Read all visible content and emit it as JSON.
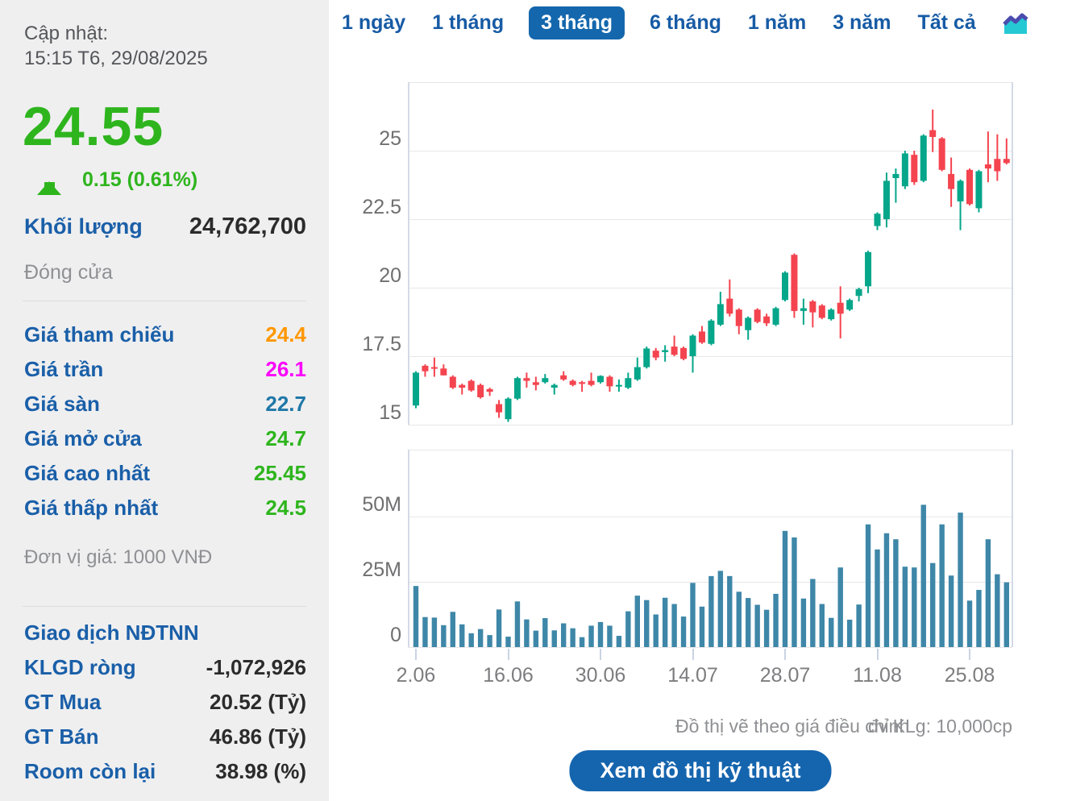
{
  "sidebar": {
    "updated_label": "Cập nhật:",
    "updated_time": "15:15 T6, 29/08/2025",
    "price": "24.55",
    "change": "0.15 (0.61%)",
    "volume_label": "Khối lượng",
    "volume_value": "24,762,700",
    "session_status": "Đóng cửa",
    "price_rows": [
      {
        "label": "Giá tham chiếu",
        "value": "24.4",
        "color": "#ff9800"
      },
      {
        "label": "Giá trần",
        "value": "26.1",
        "color": "#fb00fb"
      },
      {
        "label": "Giá sàn",
        "value": "22.7",
        "color": "#1f78a8"
      },
      {
        "label": "Giá mở cửa",
        "value": "24.7",
        "color": "#2eb51d"
      },
      {
        "label": "Giá cao nhất",
        "value": "25.45",
        "color": "#2eb51d"
      },
      {
        "label": "Giá thấp nhất",
        "value": "24.5",
        "color": "#2eb51d"
      }
    ],
    "unit_note": "Đơn vị giá: 1000 VNĐ",
    "foreign": {
      "title": "Giao dịch NĐTNN",
      "rows": [
        {
          "label": "KLGD ròng",
          "value": "-1,072,926"
        },
        {
          "label": "GT Mua",
          "value": "20.52 (Tỷ)"
        },
        {
          "label": "GT Bán",
          "value": "46.86 (Tỷ)"
        },
        {
          "label": "Room còn lại",
          "value": "38.98 (%)"
        }
      ]
    },
    "colors": {
      "price_up": "#2eb51d",
      "label_blue": "#1a5fa8"
    }
  },
  "tabs": {
    "items": [
      "1 ngày",
      "1 tháng",
      "3 tháng",
      "6 tháng",
      "1 năm",
      "3 năm",
      "Tất cả"
    ],
    "active": "3 tháng",
    "icon": "area-chart-icon"
  },
  "footer": {
    "note_left": "Đồ thị vẽ theo giá điều chỉnh",
    "note_right": "đv KLg: 10,000cp",
    "button_label": "Xem đồ thị kỹ thuật"
  },
  "chart_data": {
    "type": "candlestick+volume",
    "title": "",
    "price_axis": {
      "tick_labels": [
        "25",
        "22.5",
        "20",
        "17.5",
        "15"
      ],
      "tick_values": [
        25,
        22.5,
        20,
        17.5,
        15
      ],
      "range_shown": [
        14.9,
        27.5
      ]
    },
    "volume_axis": {
      "tick_labels": [
        "50M",
        "25M",
        "0"
      ],
      "tick_values_m": [
        50,
        25,
        0
      ]
    },
    "x_axis": {
      "tick_labels": [
        "2.06",
        "16.06",
        "30.06",
        "14.07",
        "28.07",
        "11.08",
        "25.08"
      ],
      "tick_indices": [
        0,
        10,
        20,
        30,
        40,
        50,
        60
      ]
    },
    "legend": null,
    "grid": true,
    "up_color": "#06a68a",
    "down_color": "#f4444f",
    "volume_color": "#3e87a8",
    "candles_ohlc": [
      [
        15.7,
        16.95,
        15.6,
        16.9
      ],
      [
        17.15,
        17.2,
        16.75,
        16.95
      ],
      [
        17.1,
        17.45,
        16.75,
        17.05
      ],
      [
        17.05,
        17.2,
        16.8,
        16.8
      ],
      [
        16.75,
        16.8,
        16.3,
        16.35
      ],
      [
        16.45,
        16.5,
        16.1,
        16.35
      ],
      [
        16.6,
        16.65,
        16.2,
        16.25
      ],
      [
        16.45,
        16.5,
        15.95,
        16.0
      ],
      [
        16.3,
        16.35,
        16.05,
        16.2
      ],
      [
        15.75,
        15.9,
        15.25,
        15.45
      ],
      [
        15.2,
        16.0,
        15.1,
        15.95
      ],
      [
        15.95,
        16.75,
        15.9,
        16.7
      ],
      [
        16.7,
        16.9,
        16.35,
        16.6
      ],
      [
        16.55,
        16.75,
        16.25,
        16.45
      ],
      [
        16.55,
        16.85,
        16.5,
        16.7
      ],
      [
        16.35,
        16.5,
        16.1,
        16.45
      ],
      [
        16.8,
        16.95,
        16.6,
        16.65
      ],
      [
        16.6,
        16.65,
        16.4,
        16.45
      ],
      [
        16.55,
        16.6,
        16.2,
        16.5
      ],
      [
        16.6,
        16.9,
        16.4,
        16.45
      ],
      [
        16.55,
        16.8,
        16.5,
        16.78
      ],
      [
        16.75,
        16.8,
        16.2,
        16.4
      ],
      [
        16.4,
        16.65,
        16.2,
        16.45
      ],
      [
        16.35,
        16.9,
        16.3,
        16.7
      ],
      [
        16.65,
        17.45,
        16.6,
        17.1
      ],
      [
        17.1,
        17.85,
        17.05,
        17.78
      ],
      [
        17.7,
        17.8,
        17.35,
        17.45
      ],
      [
        17.65,
        17.9,
        17.3,
        17.72
      ],
      [
        17.85,
        18.25,
        17.5,
        17.55
      ],
      [
        17.8,
        17.85,
        17.35,
        17.4
      ],
      [
        17.5,
        18.3,
        16.9,
        18.25
      ],
      [
        18.4,
        18.6,
        17.95,
        18.0
      ],
      [
        17.95,
        18.85,
        17.9,
        18.8
      ],
      [
        18.65,
        19.85,
        18.6,
        19.4
      ],
      [
        19.6,
        20.3,
        18.95,
        19.05
      ],
      [
        19.2,
        19.25,
        18.3,
        18.6
      ],
      [
        18.45,
        18.95,
        18.1,
        18.9
      ],
      [
        19.2,
        19.25,
        18.7,
        18.75
      ],
      [
        18.95,
        19.05,
        18.6,
        18.7
      ],
      [
        18.65,
        19.3,
        18.6,
        19.25
      ],
      [
        19.55,
        20.6,
        19.5,
        20.55
      ],
      [
        21.2,
        21.25,
        18.9,
        19.15
      ],
      [
        19.15,
        19.6,
        18.65,
        19.25
      ],
      [
        19.5,
        19.55,
        18.55,
        19.1
      ],
      [
        19.35,
        19.4,
        18.85,
        18.9
      ],
      [
        18.85,
        19.25,
        18.8,
        19.2
      ],
      [
        19.45,
        20.05,
        18.15,
        19.05
      ],
      [
        19.2,
        19.6,
        19.15,
        19.55
      ],
      [
        19.7,
        20.0,
        19.5,
        19.95
      ],
      [
        20.05,
        21.35,
        19.8,
        21.3
      ],
      [
        22.25,
        22.75,
        22.1,
        22.7
      ],
      [
        22.5,
        24.2,
        22.2,
        23.9
      ],
      [
        24.0,
        24.35,
        23.1,
        24.15
      ],
      [
        23.7,
        25.0,
        23.6,
        24.9
      ],
      [
        24.85,
        25.0,
        23.75,
        23.85
      ],
      [
        23.9,
        25.6,
        23.85,
        25.55
      ],
      [
        25.75,
        26.5,
        24.95,
        25.5
      ],
      [
        25.45,
        25.5,
        24.25,
        24.3
      ],
      [
        24.15,
        24.75,
        22.95,
        23.6
      ],
      [
        23.15,
        23.95,
        22.1,
        23.9
      ],
      [
        24.3,
        24.35,
        23.0,
        23.05
      ],
      [
        22.9,
        24.3,
        22.75,
        24.25
      ],
      [
        24.5,
        25.7,
        23.85,
        24.35
      ],
      [
        24.7,
        25.6,
        23.9,
        24.25
      ],
      [
        24.7,
        25.45,
        24.5,
        24.55
      ]
    ],
    "volumes_millions": [
      23.4,
      11.5,
      11.3,
      8.4,
      13.5,
      8.7,
      5.3,
      6.9,
      4.6,
      14.4,
      4.0,
      17.5,
      10.6,
      6.3,
      11.1,
      6.4,
      9.1,
      7.2,
      3.8,
      8.2,
      9.6,
      8.2,
      4.3,
      13.7,
      19.7,
      18.0,
      12.5,
      18.9,
      16.5,
      11.7,
      24.6,
      15.5,
      27.2,
      29.2,
      27.2,
      21.2,
      18.8,
      16.2,
      14.3,
      20.4,
      44.5,
      42.0,
      18.6,
      26.1,
      16.5,
      11.2,
      30.5,
      10.5,
      16.3,
      47.0,
      37.4,
      43.6,
      41.3,
      30.8,
      30.5,
      54.5,
      32.2,
      47.0,
      27.4,
      51.5,
      17.8,
      21.9,
      41.3,
      27.9,
      24.8
    ]
  }
}
